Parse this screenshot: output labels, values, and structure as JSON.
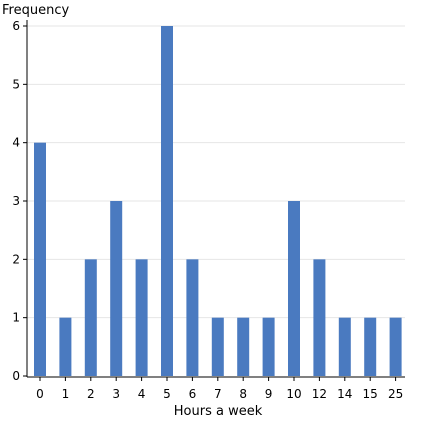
{
  "chart_data": {
    "type": "bar",
    "title": "",
    "xlabel": "Hours a week",
    "ylabel": "Frequency",
    "categories": [
      "0",
      "1",
      "2",
      "3",
      "4",
      "5",
      "6",
      "7",
      "8",
      "9",
      "10",
      "12",
      "14",
      "15",
      "25"
    ],
    "values": [
      4,
      1,
      2,
      3,
      2,
      6,
      2,
      1,
      1,
      1,
      3,
      2,
      1,
      1,
      1
    ],
    "yticks": [
      "0",
      "1",
      "2",
      "3",
      "4",
      "5",
      "6"
    ],
    "ylim": [
      0,
      6
    ],
    "grid": true,
    "legend": "none",
    "bar_color": "#4a7ac0",
    "grid_color": "#e6e6e6",
    "axis_color": "#000000"
  }
}
